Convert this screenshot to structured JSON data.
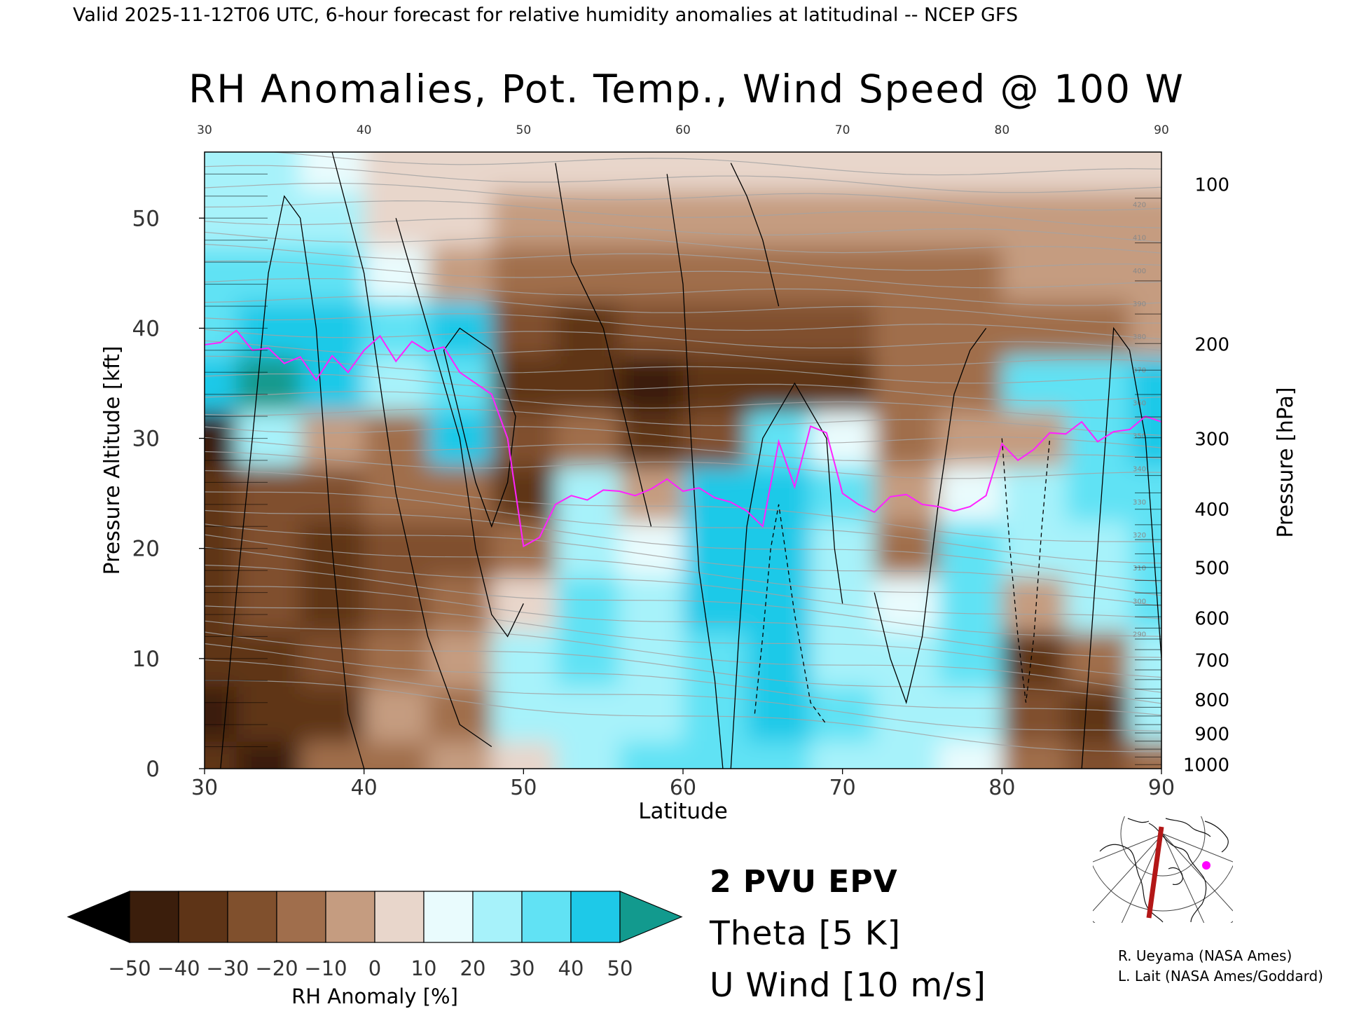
{
  "header": {
    "valid_line": "Valid 2025-11-12T06 UTC, 6-hour forecast for relative humidity anomalies at latitudinal -- NCEP GFS"
  },
  "chart_data": {
    "type": "heatmap",
    "title": "RH Anomalies, Pot. Temp., Wind Speed @ 100 W",
    "xlabel": "Latitude",
    "ylabel_left": "Pressure Altitude [kft]",
    "ylabel_right": "Pressure [hPa]",
    "xlim": [
      30,
      90
    ],
    "ylim": [
      0,
      56
    ],
    "x_ticks": [
      "30",
      "40",
      "50",
      "60",
      "70",
      "80",
      "90"
    ],
    "y_ticks_left": [
      "0",
      "10",
      "20",
      "30",
      "40",
      "50"
    ],
    "y_ticks_left_values": [
      0,
      10,
      20,
      30,
      40,
      50
    ],
    "y_ticks_right": [
      "100",
      "200",
      "300",
      "400",
      "500",
      "600",
      "700",
      "800",
      "900",
      "1000"
    ],
    "y_ticks_right_kft": [
      53.1,
      38.6,
      30.0,
      23.6,
      18.3,
      13.7,
      9.9,
      6.3,
      3.2,
      0.4
    ],
    "colorbar": {
      "label": "RH Anomaly [%]",
      "ticks": [
        "−50",
        "−40",
        "−30",
        "−20",
        "−10",
        "0",
        "10",
        "20",
        "30",
        "40",
        "50"
      ],
      "levels": [
        -50,
        -40,
        -30,
        -20,
        -10,
        0,
        10,
        20,
        30,
        40,
        50
      ],
      "colors": [
        "#3b1e0c",
        "#5e3417",
        "#80502d",
        "#a06e4c",
        "#c59c80",
        "#e8d6cb",
        "#e9fbfd",
        "#a7f2fa",
        "#61e2f4",
        "#1ec9e8",
        "#00a6c9"
      ],
      "under_color": "#000000",
      "over_color": "#129a8e"
    },
    "overlays": {
      "epv_label": "2 PVU EPV",
      "epv_color": "#ff22ff",
      "theta_label": "Theta [5 K]",
      "theta_color": "#a3a3a3",
      "theta_levels": [
        "290",
        "300",
        "310",
        "320",
        "330",
        "340",
        "350",
        "360",
        "370",
        "380",
        "390",
        "400",
        "410",
        "420"
      ],
      "wind_label": "U Wind [10 m/s]",
      "wind_color": "#000000",
      "wind_levels": [
        "-10",
        "0",
        "10",
        "30",
        "50"
      ]
    },
    "anomaly_field": {
      "lat": [
        30,
        34,
        38,
        42,
        46,
        50,
        54,
        58,
        62,
        66,
        70,
        74,
        78,
        82,
        86,
        90
      ],
      "alt_kft": [
        0,
        5,
        10,
        15,
        20,
        25,
        30,
        35,
        40,
        45,
        50,
        55
      ],
      "rh_pct": [
        [
          -40,
          -45,
          -20,
          -15,
          -5,
          0,
          20,
          30,
          30,
          35,
          25,
          25,
          10,
          -20,
          -30,
          -20
        ],
        [
          -45,
          -40,
          -35,
          -10,
          -15,
          20,
          20,
          25,
          30,
          40,
          30,
          20,
          25,
          -30,
          -35,
          20
        ],
        [
          -40,
          -35,
          -30,
          -15,
          -10,
          25,
          30,
          20,
          35,
          40,
          25,
          20,
          30,
          -35,
          -20,
          25
        ],
        [
          -35,
          -30,
          -35,
          -25,
          -15,
          5,
          30,
          20,
          40,
          45,
          25,
          15,
          30,
          -10,
          20,
          30
        ],
        [
          -35,
          -30,
          -40,
          -30,
          -25,
          -20,
          25,
          15,
          40,
          45,
          20,
          -15,
          30,
          20,
          25,
          30
        ],
        [
          -40,
          -25,
          -30,
          -20,
          -15,
          -35,
          25,
          -10,
          40,
          45,
          30,
          -10,
          10,
          25,
          30,
          35
        ],
        [
          -45,
          20,
          -10,
          -15,
          40,
          -30,
          -20,
          -35,
          -30,
          30,
          10,
          -15,
          -10,
          -10,
          30,
          45
        ],
        [
          45,
          50,
          40,
          20,
          30,
          -40,
          -35,
          -45,
          -40,
          -40,
          -35,
          -20,
          -15,
          30,
          35,
          40
        ],
        [
          35,
          40,
          45,
          30,
          40,
          -30,
          -35,
          -30,
          -30,
          -25,
          -25,
          -20,
          -20,
          -20,
          -15,
          -10
        ],
        [
          30,
          35,
          30,
          15,
          -5,
          -15,
          -15,
          -15,
          -15,
          -15,
          -15,
          -15,
          -15,
          -10,
          -10,
          -5
        ],
        [
          20,
          20,
          20,
          5,
          0,
          -5,
          -5,
          -5,
          -5,
          -5,
          -5,
          -5,
          -5,
          -5,
          -5,
          -5
        ],
        [
          20,
          20,
          10,
          5,
          0,
          0,
          0,
          0,
          0,
          0,
          0,
          0,
          0,
          0,
          0,
          0
        ]
      ]
    }
  },
  "inset_map": {
    "marker_color": "#ff00ff",
    "section_line_color": "#b31717"
  },
  "credits": {
    "line1": "R. Ueyama (NASA Ames)",
    "line2": "L. Lait (NASA Ames/Goddard)"
  }
}
